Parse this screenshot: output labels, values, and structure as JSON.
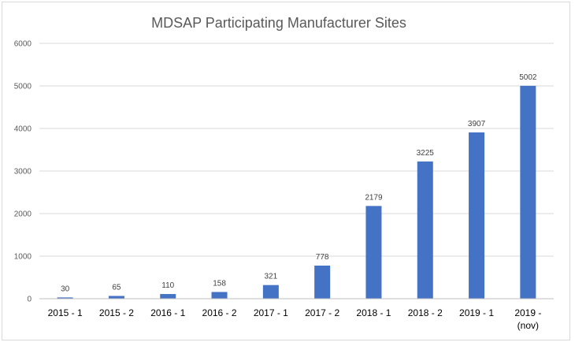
{
  "chart_data": {
    "type": "bar",
    "title": "MDSAP Participating Manufacturer Sites",
    "categories": [
      [
        "2015 - 1"
      ],
      [
        "2015 - 2"
      ],
      [
        "2016 - 1"
      ],
      [
        "2016 - 2"
      ],
      [
        "2017 - 1"
      ],
      [
        "2017 - 2"
      ],
      [
        "2018 - 1"
      ],
      [
        "2018 - 2"
      ],
      [
        "2019 - 1"
      ],
      [
        "2019 -",
        "(nov)"
      ]
    ],
    "values": [
      30,
      65,
      110,
      158,
      321,
      778,
      2179,
      3225,
      3907,
      5002
    ],
    "data_labels": [
      "30",
      "65",
      "110",
      "158",
      "321",
      "778",
      "2179",
      "3225",
      "3907",
      "5002"
    ],
    "y_ticks": [
      "0",
      "1000",
      "2000",
      "3000",
      "4000",
      "5000",
      "6000"
    ],
    "ylim": [
      0,
      6000
    ],
    "xlabel": "",
    "ylabel": "",
    "grid": true,
    "legend": "none",
    "bar_color": "#4472C4"
  }
}
